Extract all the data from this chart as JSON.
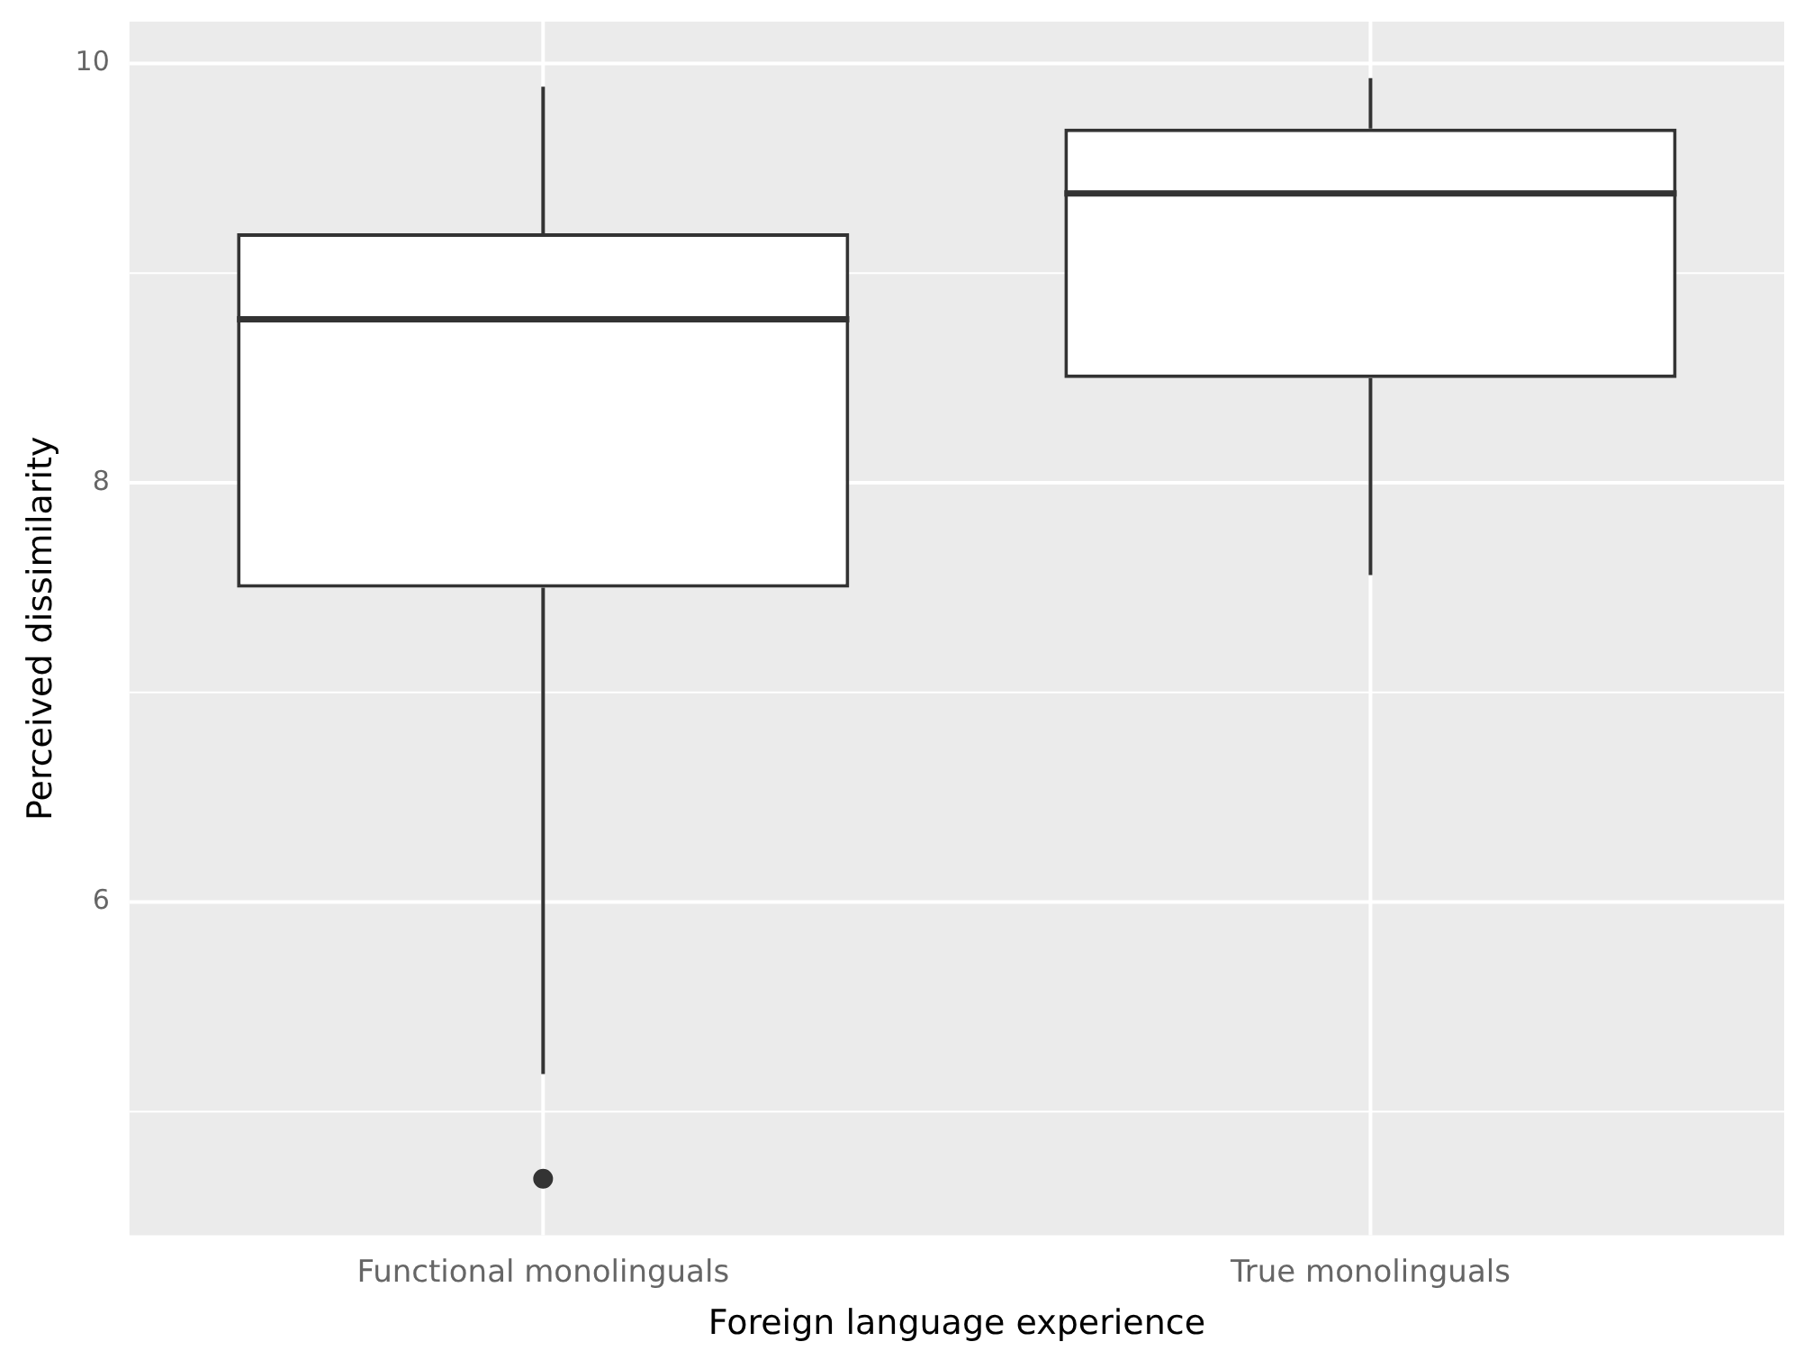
{
  "chart_data": {
    "type": "box",
    "xlabel": "Foreign language experience",
    "ylabel": "Perceived dissimilarity",
    "categories": [
      "Functional monolinguals",
      "True monolinguals"
    ],
    "boxes": [
      {
        "low": 5.18,
        "q1": 7.5,
        "median": 8.78,
        "q3": 9.19,
        "high": 9.89,
        "outliers": [
          4.68
        ]
      },
      {
        "low": 7.56,
        "q1": 8.5,
        "median": 9.38,
        "q3": 9.69,
        "high": 9.93
      }
    ],
    "color": "#333333",
    "ylim": [
      4.41,
      10.2
    ],
    "yticks": [
      {
        "value": 5,
        "label": null
      },
      6,
      {
        "value": 7,
        "label": null
      },
      8,
      {
        "value": 9,
        "label": null
      },
      10
    ],
    "grid": true,
    "legend": false
  }
}
